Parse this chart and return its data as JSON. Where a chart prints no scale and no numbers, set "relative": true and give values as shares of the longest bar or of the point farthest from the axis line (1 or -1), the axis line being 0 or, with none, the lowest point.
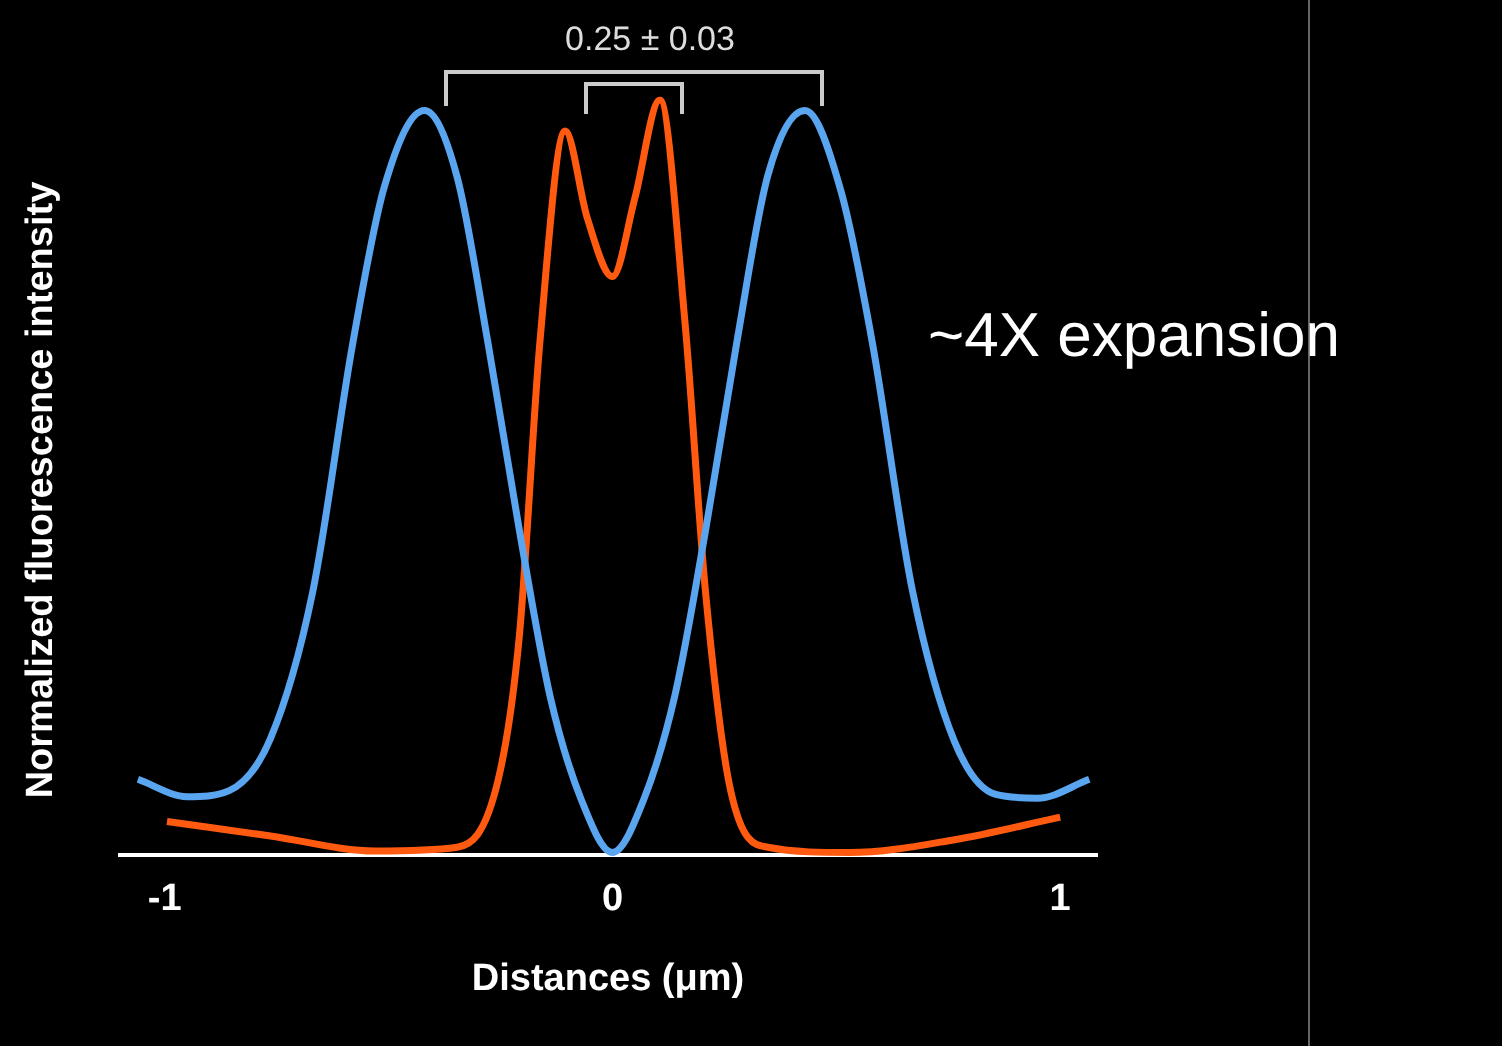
{
  "chart_data": {
    "type": "line",
    "xlabel": "Distances (μm)",
    "ylabel": "Normalized fluorescence intensity",
    "relative": true,
    "xlim": [
      -1.1,
      1.08
    ],
    "xticks": [
      -1,
      0,
      1
    ],
    "grid": false,
    "legend": false,
    "marker": "none",
    "line_style": "solid",
    "annotations": [
      "0.25 ± 0.03",
      "~4X expansion"
    ],
    "series": [
      {
        "color": "#5aa5f0",
        "x": [
          -1.06,
          -0.95,
          -0.856,
          -0.764,
          -0.67,
          -0.58,
          -0.51,
          -0.42,
          -0.347,
          -0.278,
          -0.208,
          -0.139,
          -0.069,
          0,
          0.069,
          0.139,
          0.208,
          0.278,
          0.347,
          0.43,
          0.51,
          0.58,
          0.67,
          0.764,
          0.856,
          0.95,
          1.065
        ],
        "values": [
          0.1,
          0.077,
          0.085,
          0.154,
          0.347,
          0.678,
          0.884,
          0.986,
          0.898,
          0.678,
          0.43,
          0.209,
          0.072,
          0.003,
          0.072,
          0.21,
          0.43,
          0.68,
          0.9,
          0.986,
          0.88,
          0.68,
          0.35,
          0.15,
          0.08,
          0.075,
          0.1
        ]
      },
      {
        "color": "#ff5a10",
        "x": [
          -0.995,
          -0.764,
          -0.53,
          -0.347,
          -0.255,
          -0.208,
          -0.162,
          -0.106,
          -0.056,
          0,
          0.05,
          0.106,
          0.162,
          0.208,
          0.264,
          0.347,
          0.53,
          0.764,
          1.0
        ],
        "values": [
          0.044,
          0.025,
          0.005,
          0.01,
          0.1,
          0.29,
          0.68,
          0.959,
          0.843,
          0.766,
          0.87,
          1,
          0.705,
          0.347,
          0.085,
          0.01,
          0.003,
          0.02,
          0.05
        ]
      }
    ]
  }
}
